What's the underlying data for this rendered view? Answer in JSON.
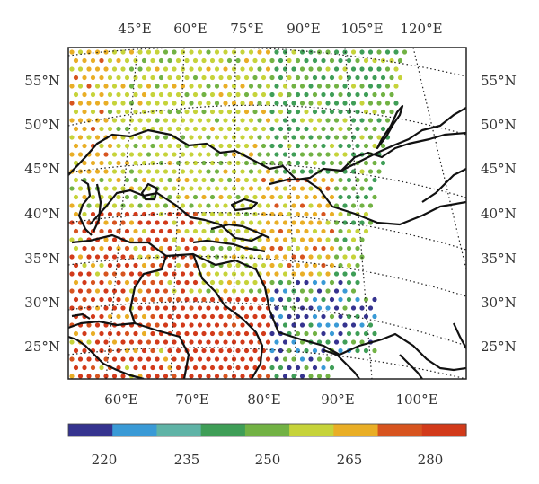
{
  "map": {
    "lon_labels_top": [
      "45°E",
      "60°E",
      "75°E",
      "90°E",
      "105°E",
      "120°E"
    ],
    "lat_labels": [
      "55°N",
      "50°N",
      "45°N",
      "40°N",
      "35°N",
      "30°N",
      "25°N"
    ],
    "lon_labels_bottom": [
      "60°E",
      "70°E",
      "80°E",
      "90°E",
      "100°E"
    ]
  },
  "colorbar": {
    "tick_labels": [
      "220",
      "235",
      "250",
      "265",
      "280"
    ],
    "colors": [
      "#35338f",
      "#3a9ad6",
      "#5fb3a6",
      "#3f9e57",
      "#72b244",
      "#c6d33a",
      "#e9ae26",
      "#d7541f",
      "#d23a1a"
    ]
  }
}
